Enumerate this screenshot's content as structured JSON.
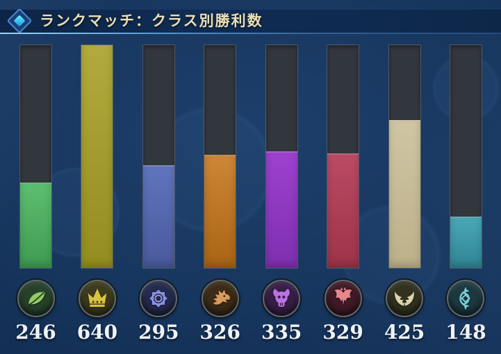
{
  "header": {
    "title": "ランクマッチ：クラス別勝利数",
    "title_color": "#ecdfb4",
    "diamond_icon": "diamond-icon",
    "underline_color": "#9bd6f7"
  },
  "chart_data": {
    "type": "bar",
    "title": "ランクマッチ：クラス別勝利数",
    "categories": [
      "forestcraft",
      "swordcraft",
      "runecraft",
      "dragoncraft",
      "shadowcraft",
      "bloodcraft",
      "havencraft",
      "portalcraft"
    ],
    "values": [
      246,
      640,
      295,
      326,
      335,
      329,
      425,
      148
    ],
    "ylim": [
      0,
      640
    ],
    "grid": false,
    "legend": false,
    "orientation": "vertical",
    "track_color": "#32373d",
    "track_border_color": "#4d5a68",
    "bar_colors": [
      {
        "top": "#5dbd70",
        "bottom": "#3e9b51"
      },
      {
        "top": "#b1aa3c",
        "bottom": "#938d1f"
      },
      {
        "top": "#6074bd",
        "bottom": "#49599c"
      },
      {
        "top": "#cd8536",
        "bottom": "#a86414"
      },
      {
        "top": "#9d41d0",
        "bottom": "#7e2fae"
      },
      {
        "top": "#bb4a64",
        "bottom": "#9d3349"
      },
      {
        "top": "#cfc5a3",
        "bottom": "#bcb089"
      },
      {
        "top": "#4aa7b6",
        "bottom": "#2f8593"
      }
    ]
  },
  "icons": [
    {
      "name": "forestcraft-leaf-icon",
      "glyph": "leaf",
      "color": "#92cb63",
      "bg": "#27422b"
    },
    {
      "name": "swordcraft-crown-icon",
      "glyph": "crown",
      "color": "#d9c33c",
      "bg": "#3d3b1d"
    },
    {
      "name": "runecraft-star-icon",
      "glyph": "rune-star",
      "color": "#8e96ea",
      "bg": "#252b4d"
    },
    {
      "name": "dragoncraft-dragon-icon",
      "glyph": "dragon-head",
      "color": "#d99b5d",
      "bg": "#3c2b18"
    },
    {
      "name": "shadowcraft-skull-icon",
      "glyph": "horned-skull",
      "color": "#bb71e4",
      "bg": "#371f47"
    },
    {
      "name": "bloodcraft-bat-icon",
      "glyph": "bat",
      "color": "#e8868e",
      "bg": "#401a26"
    },
    {
      "name": "havencraft-wings-icon",
      "glyph": "wings",
      "color": "#ded3ad",
      "bg": "#32321f"
    },
    {
      "name": "portalcraft-sigil-icon",
      "glyph": "portal-sigil",
      "color": "#79cdd4",
      "bg": "#1d3940"
    }
  ],
  "values_text_color": "#eef2f7"
}
